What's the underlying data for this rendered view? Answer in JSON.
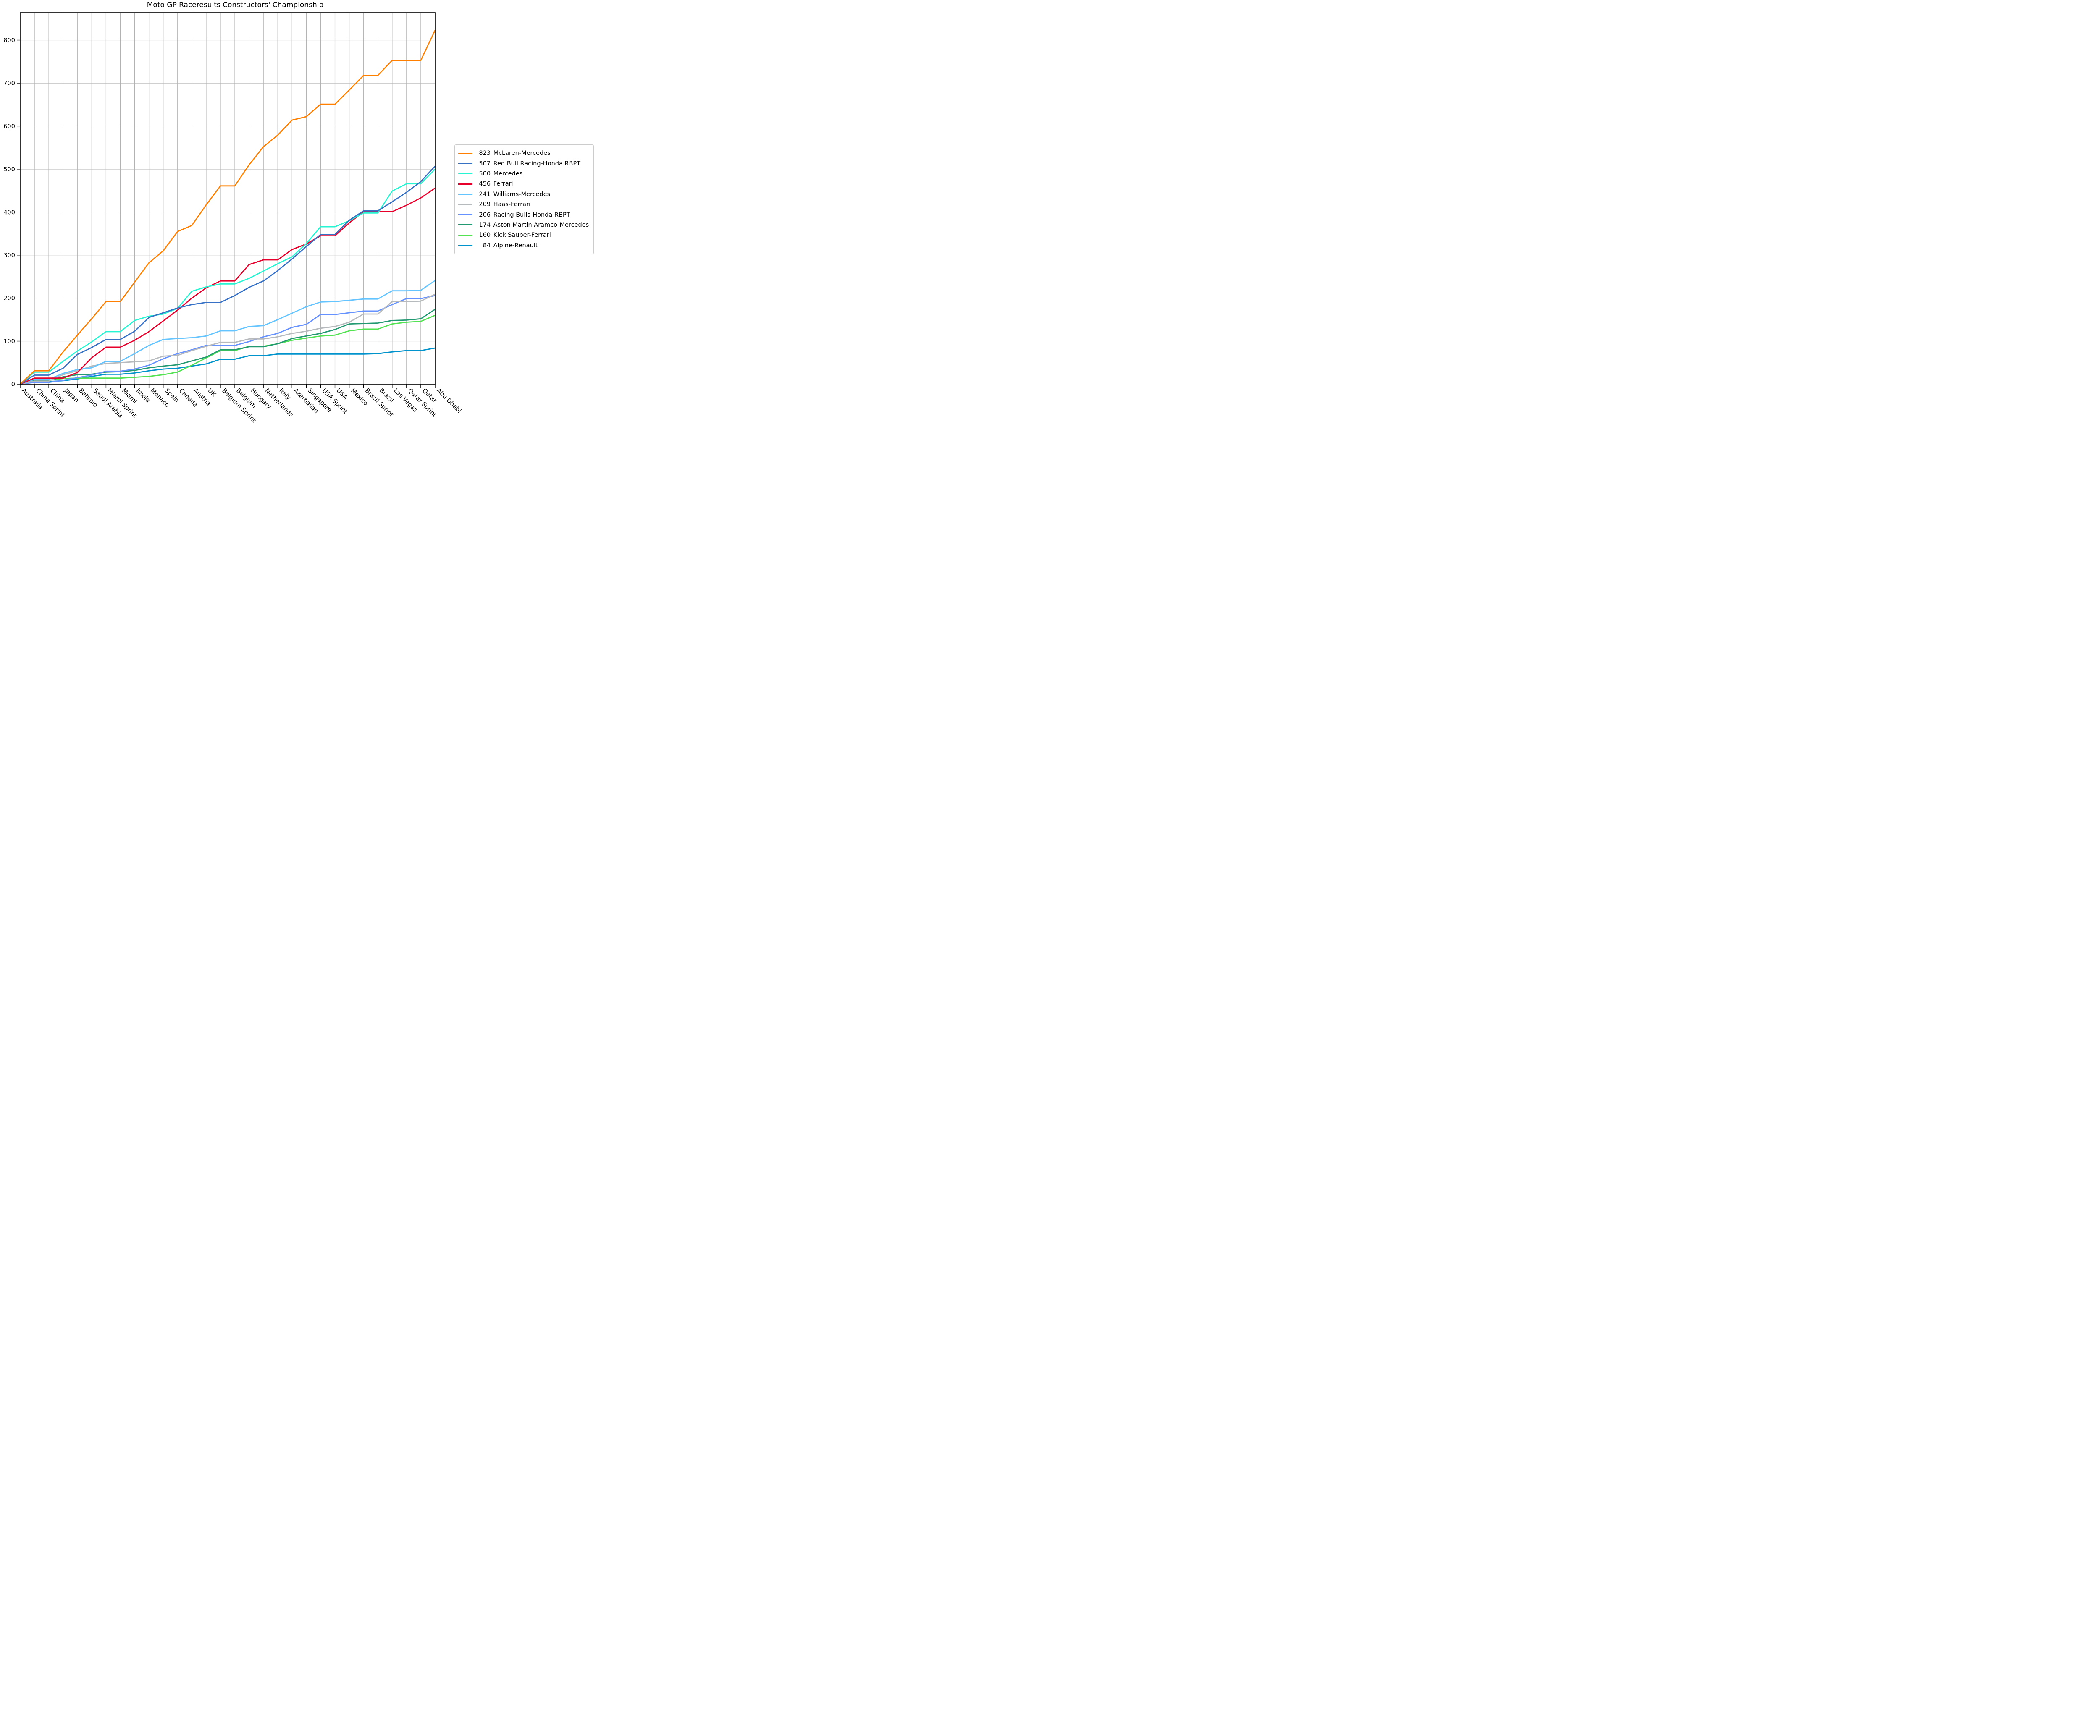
{
  "title": "Moto GP Raceresults Constructors' Championship",
  "chart_data": {
    "type": "line",
    "title": "Moto GP Raceresults Constructors' Championship",
    "xlabel": "",
    "ylabel": "",
    "grid": true,
    "legend_position": "right-outside",
    "ylim": [
      0,
      864
    ],
    "yticks": [
      0,
      100,
      200,
      300,
      400,
      500,
      600,
      700,
      800
    ],
    "x_categories": [
      "Australia",
      "China Sprint",
      "China",
      "Japan",
      "Bahrain",
      "Saudi Arabia",
      "Miami Sprint",
      "Miami",
      "Imola",
      "Monaco",
      "Spain",
      "Canada",
      "Austria",
      "UK",
      "Belgium Sprint",
      "Belgium",
      "Hungary",
      "Netherlands",
      "Italy",
      "Azerbaijan",
      "Singapore",
      "USA Sprint",
      "USA",
      "Mexico",
      "Brazil Sprint",
      "Brazil",
      "Las Vegas",
      "Qatar Sprint",
      "Qatar",
      "Abu Dhabi"
    ],
    "series": [
      {
        "name": "McLaren-Mercedes",
        "final_points": 823,
        "color": "#FF8000",
        "values": [
          0,
          31,
          31,
          75,
          114,
          152,
          192,
          192,
          237,
          282,
          310,
          355,
          369,
          417,
          461,
          461,
          510,
          552,
          579,
          614,
          622,
          651,
          651,
          684,
          718,
          718,
          753,
          753,
          753,
          823
        ]
      },
      {
        "name": "Red Bull Racing-Honda RBPT",
        "final_points": 507,
        "color": "#3671C6",
        "values": [
          0,
          21,
          21,
          37,
          69,
          85,
          104,
          104,
          123,
          155,
          166,
          177,
          185,
          190,
          190,
          206,
          225,
          240,
          264,
          291,
          320,
          348,
          348,
          381,
          403,
          403,
          424,
          446,
          471,
          507
        ]
      },
      {
        "name": "Mercedes",
        "final_points": 500,
        "color": "#27F4D2",
        "values": [
          0,
          28,
          28,
          53,
          77,
          98,
          122,
          122,
          148,
          158,
          163,
          176,
          216,
          226,
          233,
          233,
          246,
          263,
          280,
          296,
          327,
          366,
          366,
          380,
          398,
          398,
          449,
          466,
          466,
          500
        ]
      },
      {
        "name": "Ferrari",
        "final_points": 456,
        "color": "#E8002D",
        "values": [
          0,
          14,
          14,
          14,
          27,
          61,
          86,
          86,
          102,
          122,
          147,
          172,
          200,
          224,
          240,
          240,
          278,
          289,
          289,
          313,
          326,
          345,
          345,
          375,
          401,
          401,
          401,
          416,
          433,
          456
        ]
      },
      {
        "name": "Williams-Mercedes",
        "final_points": 241,
        "color": "#64C4FF",
        "values": [
          0,
          11,
          11,
          25,
          34,
          38,
          53,
          53,
          71,
          90,
          104,
          106,
          108,
          112,
          124,
          124,
          134,
          136,
          150,
          165,
          180,
          191,
          192,
          195,
          198,
          198,
          217,
          217,
          218,
          241
        ]
      },
      {
        "name": "Haas-Ferrari",
        "final_points": 209,
        "color": "#B6BABD",
        "values": [
          0,
          7,
          7,
          22,
          31,
          42,
          48,
          50,
          52,
          54,
          65,
          67,
          78,
          88,
          97,
          97,
          105,
          105,
          110,
          118,
          123,
          130,
          134,
          144,
          163,
          163,
          192,
          192,
          193,
          209
        ]
      },
      {
        "name": "Racing Bulls-Honda RBPT",
        "final_points": 206,
        "color": "#6692FF",
        "values": [
          0,
          4,
          4,
          9,
          15,
          21,
          30,
          30,
          35,
          44,
          59,
          71,
          80,
          90,
          90,
          90,
          99,
          110,
          118,
          132,
          139,
          162,
          162,
          166,
          170,
          170,
          185,
          199,
          199,
          206
        ]
      },
      {
        "name": "Aston Martin Aramco-Mercedes",
        "final_points": 174,
        "color": "#229971",
        "values": [
          0,
          8,
          8,
          17,
          22,
          23,
          28,
          29,
          32,
          38,
          42,
          45,
          54,
          63,
          80,
          80,
          87,
          87,
          94,
          106,
          112,
          118,
          127,
          140,
          141,
          142,
          148,
          149,
          152,
          174
        ]
      },
      {
        "name": "Kick Sauber-Ferrari",
        "final_points": 160,
        "color": "#52E252",
        "values": [
          0,
          9,
          9,
          13,
          14,
          14,
          14,
          14,
          16,
          18,
          22,
          28,
          44,
          61,
          78,
          78,
          88,
          88,
          94,
          102,
          107,
          112,
          114,
          124,
          128,
          128,
          140,
          144,
          146,
          160
        ]
      },
      {
        "name": "Alpine-Renault",
        "final_points": 84,
        "color": "#0093CC",
        "values": [
          0,
          5,
          6,
          8,
          12,
          18,
          23,
          23,
          26,
          31,
          35,
          37,
          42,
          47,
          58,
          58,
          66,
          66,
          70,
          70,
          70,
          70,
          70,
          70,
          70,
          71,
          75,
          78,
          78,
          84
        ]
      }
    ]
  }
}
